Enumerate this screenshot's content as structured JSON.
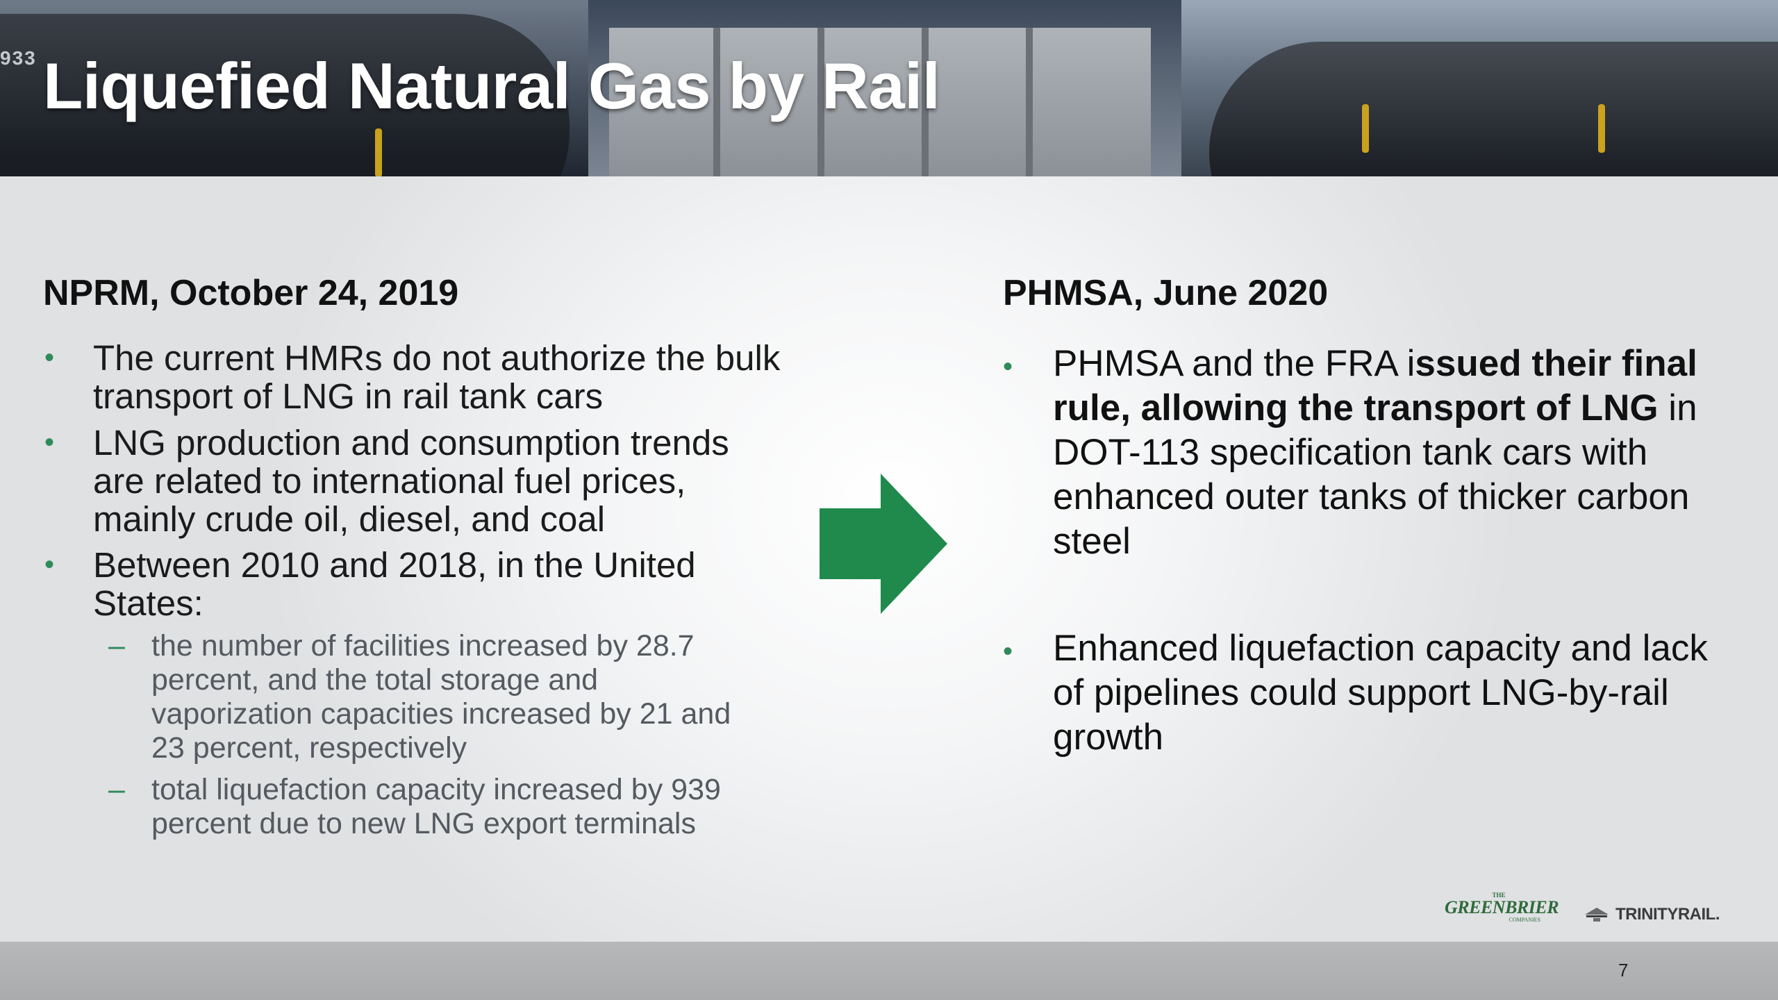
{
  "slide": {
    "title": "Liquefied Natural Gas by Rail",
    "banner_car_number": "933",
    "left": {
      "heading": "NPRM, October 24, 2019",
      "bullets": [
        {
          "line1": "The current HMRs do not authorize the bulk",
          "line2": "transport of LNG in rail tank cars"
        },
        {
          "line1": "LNG production and consumption trends",
          "line2": "are related to international fuel prices,",
          "line3": "mainly crude oil, diesel, and coal"
        },
        {
          "line1": "Between 2010 and 2018, in the United",
          "line2": "States:"
        }
      ],
      "sub_bullets": [
        {
          "line1": "the number of facilities increased by 28.7",
          "line2": "percent, and the total storage and",
          "line3": "vaporization capacities increased by 21 and",
          "line4": "23 percent, respectively"
        },
        {
          "line1": "total liquefaction capacity increased by 939",
          "line2": "percent due to new LNG export terminals"
        }
      ],
      "bullet_symbol": "•",
      "dash_symbol": "–"
    },
    "right": {
      "heading": "PHMSA, June 2020",
      "bullets": [
        {
          "segments": [
            {
              "text": "PHMSA and the FRA i",
              "bold": false
            },
            {
              "text": "ssued their final",
              "bold": true
            },
            {
              "text": "rule, allowing the transport of LNG",
              "bold": true
            },
            {
              "text": " in",
              "bold": false
            },
            {
              "text": "DOT-113 specification tank cars with",
              "bold": false
            },
            {
              "text": "enhanced outer tanks of thicker carbon",
              "bold": false
            },
            {
              "text": "steel",
              "bold": false
            }
          ]
        },
        {
          "line1": "Enhanced liquefaction capacity and lack",
          "line2": "of pipelines could support LNG-by-rail",
          "line3": "growth"
        }
      ]
    },
    "arrow_icon": "right-arrow-icon",
    "logos": {
      "greenbrier": {
        "the": "THE",
        "name": "GREENBRIER",
        "companies": "COMPANIES"
      },
      "trinity": {
        "name": "TRINITYRAIL",
        "mark": "."
      }
    },
    "page_number": "7",
    "colors": {
      "accent_green": "#2e8b57",
      "arrow_green": "#1f8a4c",
      "title_text": "#ffffff",
      "body_text": "#1b1b1b",
      "sub_text": "#555a60",
      "footer_bg": "#b0b2b4"
    }
  }
}
